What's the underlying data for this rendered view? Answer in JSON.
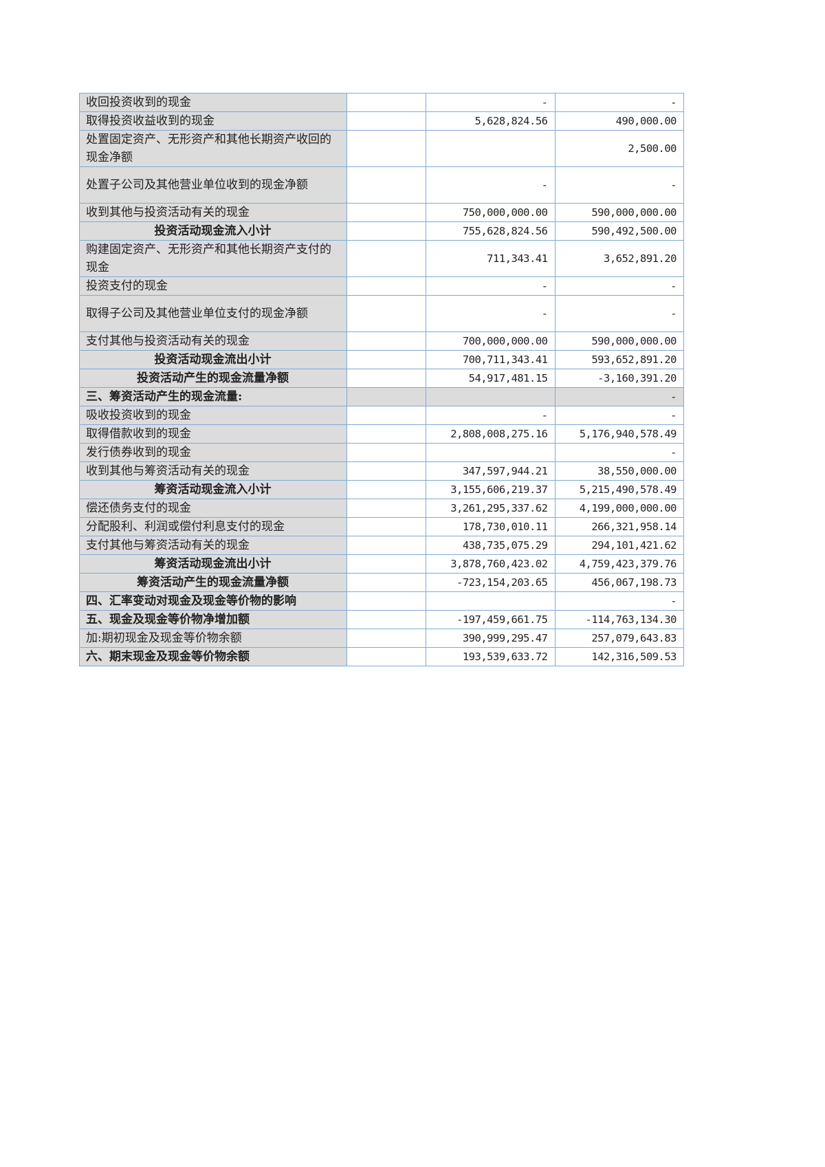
{
  "table": {
    "rows": [
      {
        "label": "收回投资收到的现金",
        "current": "-",
        "prior": "-"
      },
      {
        "label": "取得投资收益收到的现金",
        "current": "5,628,824.56",
        "prior": "490,000.00"
      },
      {
        "label": "处置固定资产、无形资产和其他长期资产收回的现金净额",
        "current": "",
        "prior": "2,500.00"
      },
      {
        "label": "处置子公司及其他营业单位收到的现金净额",
        "current": "-",
        "prior": "-"
      },
      {
        "label": "收到其他与投资活动有关的现金",
        "current": "750,000,000.00",
        "prior": "590,000,000.00"
      },
      {
        "label": "投资活动现金流入小计",
        "current": "755,628,824.56",
        "prior": "590,492,500.00"
      },
      {
        "label": "购建固定资产、无形资产和其他长期资产支付的现金",
        "current": "711,343.41",
        "prior": "3,652,891.20"
      },
      {
        "label": "投资支付的现金",
        "current": "-",
        "prior": "-"
      },
      {
        "label": "取得子公司及其他营业单位支付的现金净额",
        "current": "-",
        "prior": "-"
      },
      {
        "label": "支付其他与投资活动有关的现金",
        "current": "700,000,000.00",
        "prior": "590,000,000.00"
      },
      {
        "label": "投资活动现金流出小计",
        "current": "700,711,343.41",
        "prior": "593,652,891.20"
      },
      {
        "label": "投资活动产生的现金流量净额",
        "current": "54,917,481.15",
        "prior": "-3,160,391.20"
      },
      {
        "label": "三、筹资活动产生的现金流量:",
        "current": "",
        "prior": "-"
      },
      {
        "label": "吸收投资收到的现金",
        "current": "-",
        "prior": "-"
      },
      {
        "label": "取得借款收到的现金",
        "current": "2,808,008,275.16",
        "prior": "5,176,940,578.49"
      },
      {
        "label": "发行债券收到的现金",
        "current": "",
        "prior": "-"
      },
      {
        "label": "收到其他与筹资活动有关的现金",
        "current": "347,597,944.21",
        "prior": "38,550,000.00"
      },
      {
        "label": "筹资活动现金流入小计",
        "current": "3,155,606,219.37",
        "prior": "5,215,490,578.49"
      },
      {
        "label": "偿还债务支付的现金",
        "current": "3,261,295,337.62",
        "prior": "4,199,000,000.00"
      },
      {
        "label": "分配股利、利润或偿付利息支付的现金",
        "current": "178,730,010.11",
        "prior": "266,321,958.14"
      },
      {
        "label": "支付其他与筹资活动有关的现金",
        "current": "438,735,075.29",
        "prior": "294,101,421.62"
      },
      {
        "label": "筹资活动现金流出小计",
        "current": "3,878,760,423.02",
        "prior": "4,759,423,379.76"
      },
      {
        "label": "筹资活动产生的现金流量净额",
        "current": "-723,154,203.65",
        "prior": "456,067,198.73"
      },
      {
        "label": "四、汇率变动对现金及现金等价物的影响",
        "current": "",
        "prior": "-"
      },
      {
        "label": "五、现金及现金等价物净增加额",
        "current": "-197,459,661.75",
        "prior": "-114,763,134.30"
      },
      {
        "label": "加:期初现金及现金等价物余额",
        "current": "390,999,295.47",
        "prior": "257,079,643.83"
      },
      {
        "label": "六、期末现金及现金等价物余额",
        "current": "193,539,633.72",
        "prior": "142,316,509.53"
      }
    ]
  }
}
